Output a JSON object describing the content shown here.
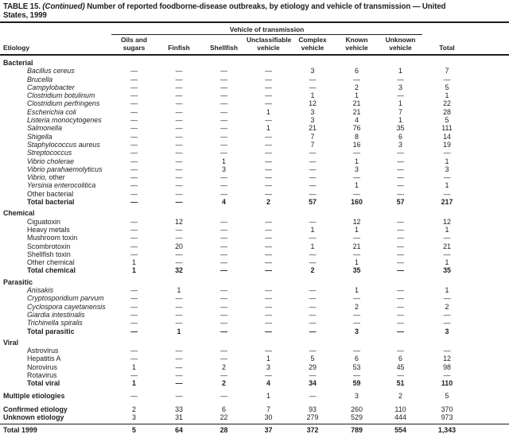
{
  "title": {
    "prefix": "TABLE 15.",
    "continued": "(Continued)",
    "line1_rest": "Number of reported foodborne-disease outbreaks, by etiology and vehicle of transmission — United",
    "line2": "States, 1999"
  },
  "header": {
    "spanner": "Vehicle of transmission",
    "etiology_label": "Etiology",
    "columns": [
      "Oils and\nsugars",
      "Finfish",
      "Shellfish",
      "Unclassifiable\nvehicle",
      "Complex\nvehicle",
      "Known\nvehicle",
      "Unknown\nvehicle",
      "Total"
    ]
  },
  "table": {
    "rows": [
      {
        "label": "Bacterial",
        "style": "section",
        "gap": 4
      },
      {
        "label": "Bacillus cereus",
        "style": "italic",
        "values": [
          "—",
          "—",
          "—",
          "—",
          "3",
          "6",
          "1",
          "7"
        ]
      },
      {
        "label": "Brucella",
        "style": "italic",
        "values": [
          "—",
          "—",
          "—",
          "—",
          "—",
          "—",
          "—",
          "—"
        ]
      },
      {
        "label": "Campylobacter",
        "style": "italic",
        "values": [
          "—",
          "—",
          "—",
          "—",
          "—",
          "2",
          "3",
          "5"
        ]
      },
      {
        "label": "Clostridium botulinum",
        "style": "italic",
        "values": [
          "—",
          "—",
          "—",
          "—",
          "1",
          "1",
          "—",
          "1"
        ]
      },
      {
        "label": "Clostridium perfringens",
        "style": "italic",
        "values": [
          "—",
          "—",
          "—",
          "—",
          "12",
          "21",
          "1",
          "22"
        ]
      },
      {
        "label": "Escherichia coli",
        "style": "italic",
        "values": [
          "—",
          "—",
          "—",
          "1",
          "3",
          "21",
          "7",
          "28"
        ]
      },
      {
        "label": "Listeria monocytogenes",
        "style": "italic",
        "values": [
          "—",
          "—",
          "—",
          "—",
          "3",
          "4",
          "1",
          "5"
        ]
      },
      {
        "label": "Salmonella",
        "style": "italic",
        "values": [
          "—",
          "—",
          "—",
          "1",
          "21",
          "76",
          "35",
          "111"
        ]
      },
      {
        "label": "Shigella",
        "style": "italic",
        "values": [
          "—",
          "—",
          "—",
          "—",
          "7",
          "8",
          "6",
          "14"
        ]
      },
      {
        "label": "Staphylococcus aureus",
        "style": "italic",
        "values": [
          "—",
          "—",
          "—",
          "—",
          "7",
          "16",
          "3",
          "19"
        ]
      },
      {
        "label": "Streptococcus",
        "style": "italic",
        "values": [
          "—",
          "—",
          "—",
          "—",
          "—",
          "—",
          "—",
          "—"
        ]
      },
      {
        "label": "Vibrio cholerae",
        "style": "italic",
        "values": [
          "—",
          "—",
          "1",
          "—",
          "—",
          "1",
          "—",
          "1"
        ]
      },
      {
        "label": "Vibrio parahaemolyticus",
        "style": "italic",
        "values": [
          "—",
          "—",
          "3",
          "—",
          "—",
          "3",
          "—",
          "3"
        ]
      },
      {
        "label": "Vibrio,",
        "label2": " other",
        "style": "italic",
        "values": [
          "—",
          "—",
          "—",
          "—",
          "—",
          "—",
          "—",
          "—"
        ]
      },
      {
        "label": "Yersinia enterocolitica",
        "style": "italic",
        "values": [
          "—",
          "—",
          "—",
          "—",
          "—",
          "1",
          "—",
          "1"
        ]
      },
      {
        "label": "Other bacterial",
        "style": "plain",
        "values": [
          "—",
          "—",
          "—",
          "—",
          "—",
          "—",
          "—",
          "—"
        ]
      },
      {
        "label": "Total bacterial",
        "style": "total",
        "values": [
          "—",
          "—",
          "4",
          "2",
          "57",
          "160",
          "57",
          "217"
        ]
      },
      {
        "label": "Chemical",
        "style": "section",
        "gap": 4
      },
      {
        "label": "Ciguatoxin",
        "style": "plain",
        "values": [
          "—",
          "12",
          "—",
          "—",
          "—",
          "12",
          "—",
          "12"
        ]
      },
      {
        "label": "Heavy metals",
        "style": "plain",
        "values": [
          "—",
          "—",
          "—",
          "—",
          "1",
          "1",
          "—",
          "1"
        ]
      },
      {
        "label": "Mushroom toxin",
        "style": "plain",
        "values": [
          "—",
          "—",
          "—",
          "—",
          "—",
          "—",
          "—",
          "—"
        ]
      },
      {
        "label": "Scombrotoxin",
        "style": "plain",
        "values": [
          "—",
          "20",
          "—",
          "—",
          "1",
          "21",
          "—",
          "21"
        ]
      },
      {
        "label": "Shellfish toxin",
        "style": "plain",
        "values": [
          "—",
          "—",
          "—",
          "—",
          "—",
          "—",
          "—",
          "—"
        ]
      },
      {
        "label": "Other chemical",
        "style": "plain",
        "values": [
          "1",
          "—",
          "—",
          "—",
          "—",
          "1",
          "—",
          "1"
        ]
      },
      {
        "label": "Total chemical",
        "style": "total",
        "values": [
          "1",
          "32",
          "—",
          "—",
          "2",
          "35",
          "—",
          "35"
        ]
      },
      {
        "label": "Parasitic",
        "style": "section",
        "gap": 4
      },
      {
        "label": "Anisakis",
        "style": "italic",
        "values": [
          "—",
          "1",
          "—",
          "—",
          "—",
          "1",
          "—",
          "1"
        ]
      },
      {
        "label": "Cryptosporidium parvum",
        "style": "italic",
        "values": [
          "—",
          "—",
          "—",
          "—",
          "—",
          "—",
          "—",
          "—"
        ]
      },
      {
        "label": "Cyclospora cayetanensis",
        "style": "italic",
        "values": [
          "—",
          "—",
          "—",
          "—",
          "—",
          "2",
          "—",
          "2"
        ]
      },
      {
        "label": "Giardia intestinalis",
        "style": "italic",
        "values": [
          "—",
          "—",
          "—",
          "—",
          "—",
          "—",
          "—",
          "—"
        ]
      },
      {
        "label": "Trichinella spiralis",
        "style": "italic",
        "values": [
          "—",
          "—",
          "—",
          "—",
          "—",
          "—",
          "—",
          "—"
        ]
      },
      {
        "label": "Total parasitic",
        "style": "total",
        "values": [
          "—",
          "1",
          "—",
          "—",
          "—",
          "3",
          "—",
          "3"
        ]
      },
      {
        "label": "Viral",
        "style": "section",
        "gap": 4
      },
      {
        "label": "Astrovirus",
        "style": "plain",
        "values": [
          "—",
          "—",
          "—",
          "—",
          "—",
          "—",
          "—",
          "—"
        ]
      },
      {
        "label": "Hepatitis A",
        "style": "plain",
        "values": [
          "—",
          "—",
          "—",
          "1",
          "5",
          "6",
          "6",
          "12"
        ]
      },
      {
        "label": "Norovirus",
        "style": "plain",
        "values": [
          "1",
          "—",
          "2",
          "3",
          "29",
          "53",
          "45",
          "98"
        ]
      },
      {
        "label": "Rotavirus",
        "style": "plain",
        "values": [
          "—",
          "—",
          "—",
          "—",
          "—",
          "—",
          "—",
          "—"
        ]
      },
      {
        "label": "Total viral",
        "style": "total",
        "values": [
          "1",
          "—",
          "2",
          "4",
          "34",
          "59",
          "51",
          "110"
        ]
      },
      {
        "label": "Multiple etiologies",
        "style": "summary",
        "gap": 5,
        "values": [
          "—",
          "—",
          "—",
          "1",
          "—",
          "3",
          "2",
          "5"
        ]
      },
      {
        "label": "Confirmed etiology",
        "style": "summary",
        "gap": 7,
        "values": [
          "2",
          "33",
          "6",
          "7",
          "93",
          "260",
          "110",
          "370"
        ]
      },
      {
        "label": "Unknown etiology",
        "style": "summary",
        "values": [
          "3",
          "31",
          "22",
          "30",
          "279",
          "529",
          "444",
          "973"
        ]
      },
      {
        "label": "Total 1999",
        "style": "grand",
        "gap": 2,
        "rule_above": true,
        "values": [
          "5",
          "64",
          "28",
          "37",
          "372",
          "789",
          "554",
          "1,343"
        ]
      }
    ]
  }
}
